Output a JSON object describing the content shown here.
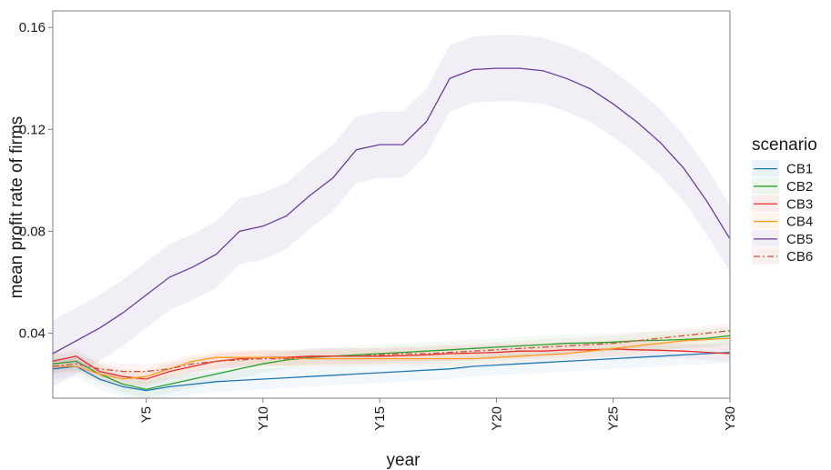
{
  "chart_data": {
    "type": "line",
    "xlabel": "year",
    "ylabel": "mean profit rate of firms",
    "x": [
      1,
      2,
      3,
      4,
      5,
      6,
      7,
      8,
      9,
      10,
      11,
      12,
      13,
      14,
      15,
      16,
      17,
      18,
      19,
      20,
      21,
      22,
      23,
      24,
      25,
      26,
      27,
      28,
      29,
      30
    ],
    "x_tick_values": [
      5,
      10,
      15,
      20,
      25,
      30
    ],
    "x_tick_labels": [
      "Y5",
      "Y10",
      "Y15",
      "Y20",
      "Y25",
      "Y30"
    ],
    "xlim": [
      1,
      30
    ],
    "y_tick_values": [
      0.04,
      0.08,
      0.12,
      0.16
    ],
    "y_tick_labels": [
      "0.04",
      "0.08",
      "0.12",
      "0.16"
    ],
    "ylim": [
      0.0145,
      0.1665
    ],
    "grid": false,
    "legend": {
      "title": "scenario",
      "position": "right"
    },
    "series": [
      {
        "name": "CB1",
        "color": "#1f77b4",
        "dash": "solid",
        "values": [
          0.026,
          0.027,
          0.022,
          0.019,
          0.0175,
          0.019,
          0.02,
          0.021,
          0.0215,
          0.022,
          0.0225,
          0.023,
          0.0235,
          0.024,
          0.0245,
          0.025,
          0.0255,
          0.026,
          0.027,
          0.0275,
          0.028,
          0.0285,
          0.029,
          0.0295,
          0.03,
          0.0305,
          0.031,
          0.0315,
          0.032,
          0.0325
        ],
        "band_half": 0.004
      },
      {
        "name": "CB2",
        "color": "#2ca02c",
        "dash": "solid",
        "values": [
          0.028,
          0.029,
          0.024,
          0.02,
          0.018,
          0.02,
          0.022,
          0.024,
          0.026,
          0.028,
          0.0295,
          0.0305,
          0.031,
          0.0315,
          0.032,
          0.0325,
          0.033,
          0.0335,
          0.034,
          0.0345,
          0.035,
          0.0355,
          0.036,
          0.0362,
          0.0365,
          0.037,
          0.0372,
          0.0375,
          0.038,
          0.039
        ],
        "band_half": 0.0035
      },
      {
        "name": "CB3",
        "color": "#e82c2c",
        "dash": "solid",
        "values": [
          0.029,
          0.031,
          0.025,
          0.023,
          0.022,
          0.025,
          0.027,
          0.029,
          0.03,
          0.0305,
          0.0305,
          0.031,
          0.031,
          0.031,
          0.031,
          0.0312,
          0.0315,
          0.032,
          0.0322,
          0.0325,
          0.033,
          0.033,
          0.0335,
          0.0335,
          0.0338,
          0.0335,
          0.0333,
          0.033,
          0.0325,
          0.032
        ],
        "band_half": 0.003
      },
      {
        "name": "CB4",
        "color": "#ff9b1e",
        "dash": "solid",
        "values": [
          0.027,
          0.027,
          0.024,
          0.022,
          0.023,
          0.026,
          0.029,
          0.0305,
          0.0305,
          0.0305,
          0.0302,
          0.03,
          0.03,
          0.03,
          0.03,
          0.03,
          0.03,
          0.03,
          0.03,
          0.0305,
          0.031,
          0.0315,
          0.032,
          0.033,
          0.034,
          0.035,
          0.036,
          0.037,
          0.0375,
          0.038
        ],
        "band_half": 0.003
      },
      {
        "name": "CB5",
        "color": "#6a3d9a",
        "dash": "solid",
        "values": [
          0.032,
          0.037,
          0.042,
          0.048,
          0.055,
          0.062,
          0.066,
          0.071,
          0.08,
          0.082,
          0.086,
          0.094,
          0.101,
          0.112,
          0.114,
          0.114,
          0.123,
          0.14,
          0.1435,
          0.144,
          0.144,
          0.143,
          0.14,
          0.136,
          0.13,
          0.123,
          0.115,
          0.105,
          0.092,
          0.077
        ],
        "band_half": 0.013
      },
      {
        "name": "CB6",
        "color": "#c8553d",
        "dash": "dashdot",
        "values": [
          0.027,
          0.028,
          0.026,
          0.025,
          0.025,
          0.026,
          0.028,
          0.029,
          0.0295,
          0.03,
          0.03,
          0.0305,
          0.031,
          0.031,
          0.0315,
          0.032,
          0.032,
          0.0325,
          0.033,
          0.0335,
          0.034,
          0.0345,
          0.035,
          0.0355,
          0.036,
          0.037,
          0.038,
          0.039,
          0.04,
          0.041
        ],
        "band_half": 0.003
      }
    ]
  }
}
